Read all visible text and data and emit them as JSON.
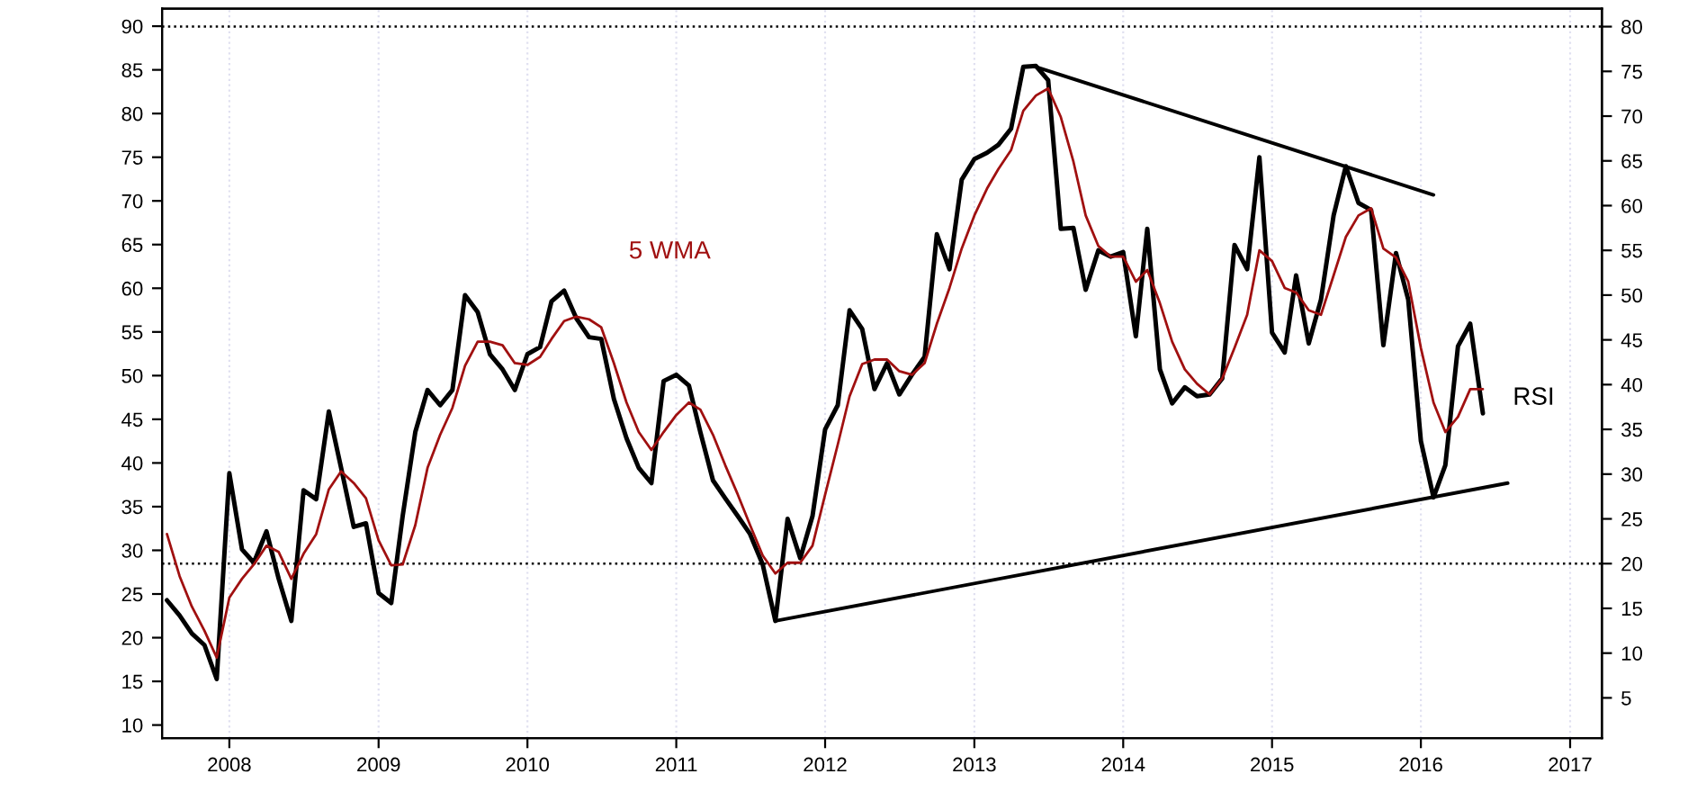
{
  "chart_data": {
    "type": "line",
    "x": [
      "2007-08",
      "2007-09",
      "2007-10",
      "2007-11",
      "2007-12",
      "2008-01",
      "2008-02",
      "2008-03",
      "2008-04",
      "2008-05",
      "2008-06",
      "2008-07",
      "2008-08",
      "2008-09",
      "2008-10",
      "2008-11",
      "2008-12",
      "2009-01",
      "2009-02",
      "2009-03",
      "2009-04",
      "2009-05",
      "2009-06",
      "2009-07",
      "2009-08",
      "2009-09",
      "2009-10",
      "2009-11",
      "2009-12",
      "2010-01",
      "2010-02",
      "2010-03",
      "2010-04",
      "2010-05",
      "2010-06",
      "2010-07",
      "2010-08",
      "2010-09",
      "2010-10",
      "2010-11",
      "2010-12",
      "2011-01",
      "2011-02",
      "2011-03",
      "2011-04",
      "2011-05",
      "2011-06",
      "2011-07",
      "2011-08",
      "2011-09",
      "2011-10",
      "2011-11",
      "2011-12",
      "2012-01",
      "2012-02",
      "2012-03",
      "2012-04",
      "2012-05",
      "2012-06",
      "2012-07",
      "2012-08",
      "2012-09",
      "2012-10",
      "2012-11",
      "2012-12",
      "2013-01",
      "2013-02",
      "2013-03",
      "2013-04",
      "2013-05",
      "2013-06",
      "2013-07",
      "2013-08",
      "2013-09",
      "2013-10",
      "2013-11",
      "2013-12",
      "2014-01",
      "2014-02",
      "2014-03",
      "2014-04",
      "2014-05",
      "2014-06",
      "2014-07",
      "2014-08",
      "2014-09",
      "2014-10",
      "2014-11",
      "2014-12",
      "2015-01",
      "2015-02",
      "2015-03",
      "2015-04",
      "2015-05",
      "2015-06",
      "2015-07",
      "2015-08",
      "2015-09",
      "2015-10",
      "2015-11",
      "2015-12",
      "2016-01",
      "2016-02",
      "2016-03",
      "2016-04",
      "2016-05",
      "2016-06"
    ],
    "series": [
      {
        "name": "RSI",
        "axis": "y2",
        "color": "#000000",
        "values": [
          15.9,
          14.2,
          12.2,
          10.9,
          7.1,
          30.1,
          21.6,
          20.1,
          23.6,
          18.3,
          13.6,
          28.2,
          27.2,
          37.0,
          30.7,
          24.1,
          24.5,
          16.7,
          15.6,
          25.3,
          34.7,
          39.4,
          37.7,
          39.4,
          50.0,
          48.1,
          43.4,
          41.7,
          39.4,
          43.4,
          44.2,
          49.3,
          50.5,
          47.4,
          45.3,
          45.1,
          38.4,
          34.0,
          30.7,
          29.0,
          40.4,
          41.1,
          39.9,
          34.7,
          29.3,
          27.3,
          25.3,
          23.3,
          19.9,
          13.6,
          25.0,
          20.6,
          25.3,
          35.0,
          37.7,
          48.3,
          46.2,
          39.5,
          42.4,
          38.9,
          41.1,
          43.1,
          56.8,
          52.9,
          62.9,
          65.2,
          65.9,
          66.8,
          68.6,
          75.5,
          75.6,
          74.0,
          57.4,
          57.5,
          50.6,
          55.0,
          54.3,
          54.8,
          45.4,
          57.4,
          41.7,
          37.9,
          39.7,
          38.7,
          38.9,
          40.7,
          55.6,
          52.9,
          65.4,
          45.8,
          43.6,
          52.2,
          44.6,
          49.5,
          58.9,
          64.4,
          60.3,
          59.5,
          44.4,
          54.7,
          49.5,
          33.7,
          27.4,
          31.0,
          44.3,
          46.8,
          36.8
        ]
      },
      {
        "name": "5 WMA",
        "axis": "y2",
        "color": "#a01010",
        "values": [
          23.3,
          18.6,
          15.2,
          12.5,
          9.5,
          16.2,
          18.3,
          19.9,
          22.0,
          21.3,
          18.3,
          21.1,
          23.3,
          28.3,
          30.3,
          29.0,
          27.3,
          22.6,
          19.8,
          19.9,
          24.3,
          30.7,
          34.4,
          37.4,
          42.1,
          44.8,
          44.8,
          44.4,
          42.4,
          42.2,
          43.1,
          45.1,
          47.1,
          47.6,
          47.3,
          46.4,
          42.4,
          38.0,
          34.7,
          32.7,
          34.7,
          36.6,
          38.0,
          37.2,
          34.4,
          31.0,
          27.7,
          24.3,
          20.9,
          18.9,
          20.1,
          20.1,
          22.0,
          27.7,
          33.3,
          38.7,
          42.3,
          42.8,
          42.8,
          41.5,
          41.1,
          42.4,
          46.8,
          50.8,
          55.2,
          58.9,
          61.9,
          64.1,
          66.2,
          70.6,
          72.3,
          73.1,
          69.9,
          64.9,
          58.9,
          55.5,
          54.3,
          54.3,
          51.5,
          52.8,
          49.1,
          44.8,
          41.7,
          40.1,
          38.9,
          40.7,
          44.1,
          47.8,
          55.0,
          53.8,
          50.8,
          50.3,
          48.3,
          47.8,
          52.2,
          56.5,
          58.9,
          59.7,
          55.2,
          54.2,
          51.5,
          44.1,
          38.0,
          34.7,
          36.4,
          39.5,
          39.5
        ]
      },
      {
        "axis": "y2",
        "color": "#000000",
        "x": [
          "2013-06",
          "2016-02"
        ],
        "values": [
          75.5,
          61.2
        ]
      },
      {
        "axis": "y2",
        "color": "#000000",
        "x": [
          "2011-09",
          "2016-08"
        ],
        "values": [
          13.6,
          29.0
        ]
      }
    ],
    "xlim": [
      "2007-07-20",
      "2017-03-20"
    ],
    "xticks": [
      "2008",
      "2009",
      "2010",
      "2011",
      "2012",
      "2013",
      "2014",
      "2015",
      "2016",
      "2017"
    ],
    "ylim": [
      8.5,
      92
    ],
    "yticks": [
      10,
      15,
      20,
      25,
      30,
      35,
      40,
      45,
      50,
      55,
      60,
      65,
      70,
      75,
      80,
      85,
      90
    ],
    "y2lim": [
      0.5,
      82
    ],
    "y2ticks": [
      5,
      10,
      15,
      20,
      25,
      30,
      35,
      40,
      45,
      50,
      55,
      60,
      65,
      70,
      75,
      80
    ],
    "ref_lines": [
      {
        "axis": "y2",
        "value": 80,
        "line_style": "dotted",
        "color": "#000000"
      },
      {
        "axis": "y2",
        "value": 20,
        "line_style": "dotted",
        "color": "#000000"
      }
    ],
    "grid": "x",
    "legend": false,
    "line_style": "solid"
  }
}
